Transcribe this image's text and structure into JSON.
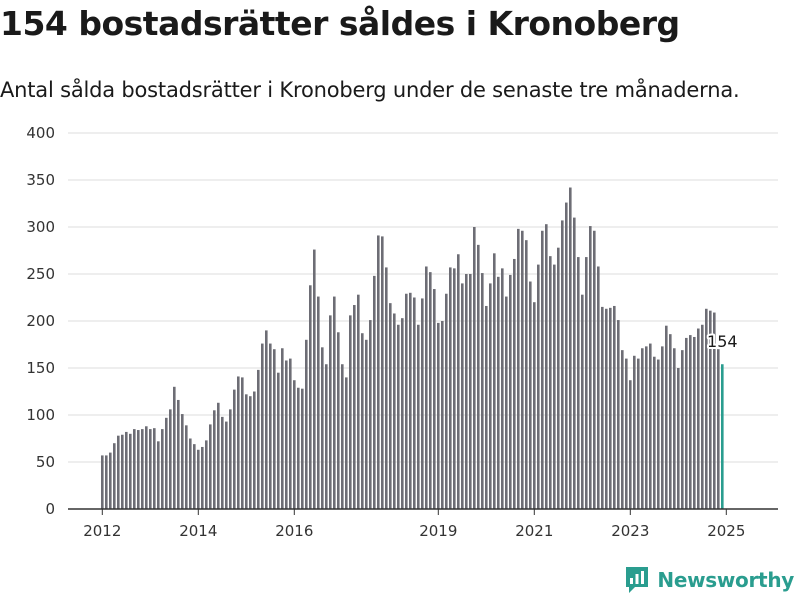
{
  "header": {
    "title": "154 bostadsrätter såldes i Kronoberg",
    "subtitle": "Antal sålda bostadsrätter i Kronoberg under de senaste tre månaderna."
  },
  "brand": {
    "name": "Newsworthy",
    "icon": "newsworthy-logo-icon",
    "color": "#2a9d8f"
  },
  "colors": {
    "bar": "#6d6d75",
    "highlight": "#2a9d8f",
    "grid": "#dedede",
    "axis": "#333333"
  },
  "chart_data": {
    "type": "bar",
    "x_ticks": [
      "2012",
      "2014",
      "2016",
      "2019",
      "2021",
      "2023",
      "2025"
    ],
    "x_tick_index": [
      0,
      24,
      48,
      84,
      108,
      132,
      156
    ],
    "y_ticks": [
      0,
      50,
      100,
      150,
      200,
      250,
      300,
      350,
      400
    ],
    "ylim": [
      0,
      400
    ],
    "grid": true,
    "highlight_label": "154",
    "values": [
      57,
      57,
      60,
      70,
      78,
      79,
      82,
      80,
      85,
      84,
      85,
      88,
      85,
      86,
      72,
      85,
      97,
      106,
      130,
      116,
      101,
      89,
      75,
      69,
      63,
      66,
      73,
      90,
      105,
      113,
      98,
      93,
      106,
      127,
      141,
      140,
      122,
      120,
      125,
      148,
      176,
      190,
      176,
      170,
      145,
      171,
      158,
      160,
      137,
      129,
      128,
      180,
      238,
      276,
      226,
      172,
      154,
      206,
      226,
      188,
      154,
      140,
      206,
      217,
      228,
      187,
      180,
      201,
      248,
      291,
      290,
      257,
      219,
      208,
      196,
      203,
      229,
      230,
      225,
      196,
      224,
      258,
      252,
      234,
      198,
      200,
      229,
      257,
      256,
      271,
      240,
      250,
      250,
      300,
      281,
      251,
      216,
      240,
      272,
      247,
      256,
      226,
      249,
      266,
      298,
      296,
      286,
      242,
      220,
      260,
      296,
      303,
      269,
      260,
      278,
      307,
      326,
      342,
      310,
      268,
      228,
      268,
      301,
      296,
      258,
      215,
      213,
      214,
      216,
      201,
      169,
      160,
      137,
      163,
      160,
      171,
      173,
      176,
      162,
      159,
      173,
      195,
      186,
      171,
      150,
      169,
      182,
      185,
      183,
      192,
      196,
      213,
      211,
      209,
      170,
      154
    ]
  }
}
